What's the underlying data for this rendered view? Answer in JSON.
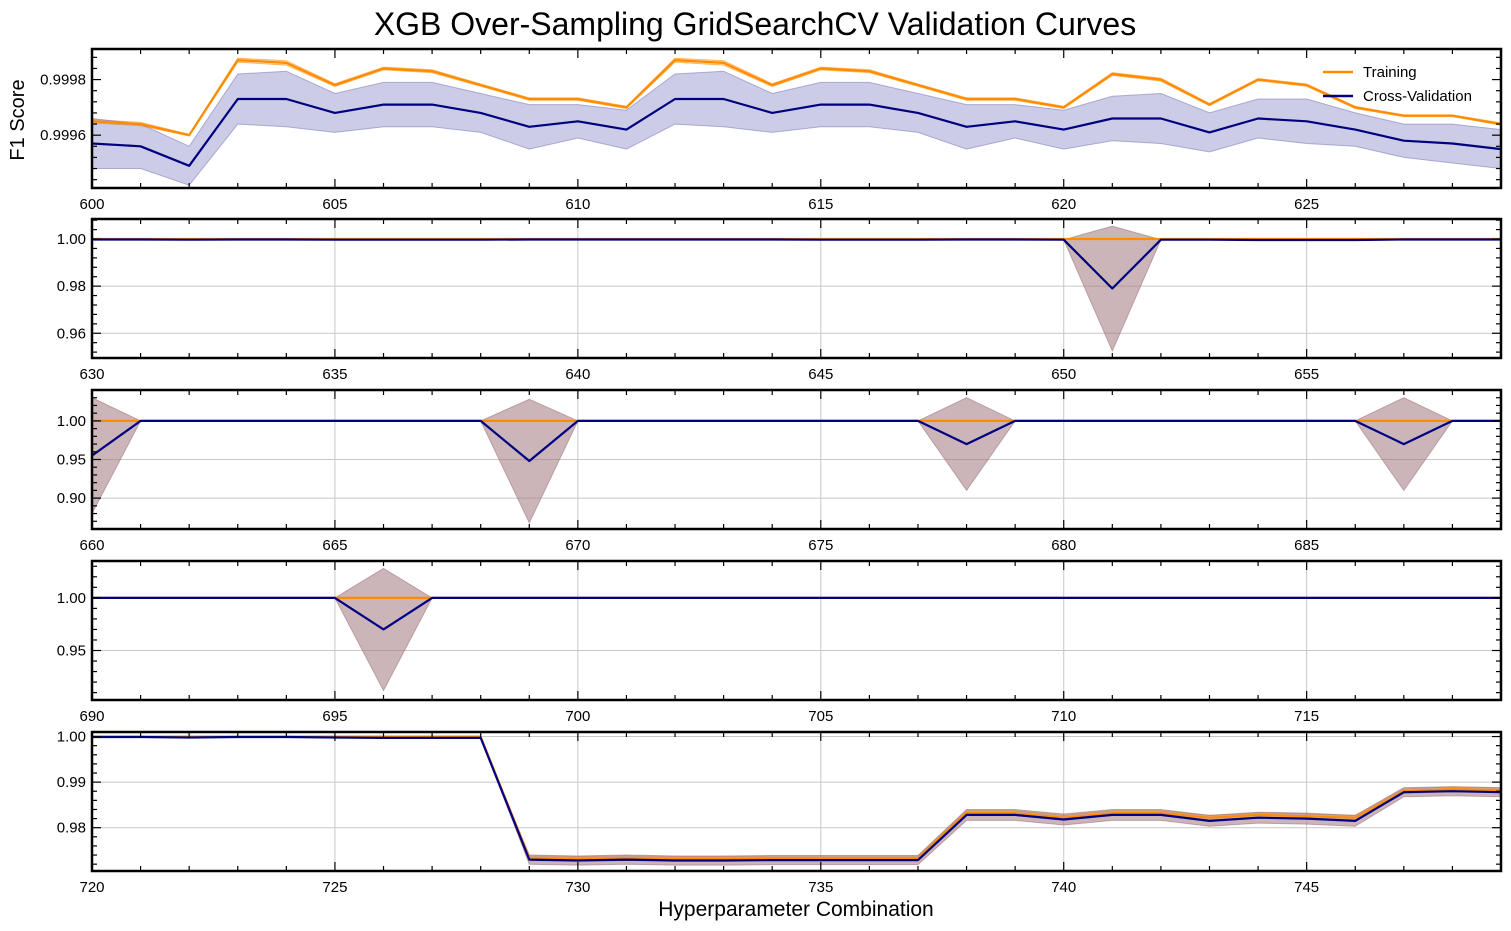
{
  "figure": {
    "title": "XGB Over-Sampling GridSearchCV Validation Curves",
    "ylabel": "F1 Score",
    "xlabel": "Hyperparameter Combination"
  },
  "legend": {
    "placement": "top-right of first panel",
    "entries": [
      "Training",
      "Cross-Validation"
    ]
  },
  "colors": {
    "training": "#ff8c00",
    "training_band": "#ffcc99",
    "cv": "#000080",
    "cv_band": "#8080c0",
    "cv_band_overlap": "#a07880"
  },
  "chart_data": [
    {
      "type": "line",
      "x": [
        600,
        601,
        602,
        603,
        604,
        605,
        606,
        607,
        608,
        609,
        610,
        611,
        612,
        613,
        614,
        615,
        616,
        617,
        618,
        619,
        620,
        621,
        622,
        623,
        624,
        625,
        626,
        627,
        628,
        629
      ],
      "xlim": [
        600,
        629
      ],
      "ylim": [
        0.99941,
        0.99991
      ],
      "xticks": [
        600,
        605,
        610,
        615,
        620,
        625
      ],
      "yticks": [
        0.9996,
        0.9998
      ],
      "ytick_labels": [
        "0.9996",
        "0.9998"
      ],
      "grid": false,
      "series": [
        {
          "name": "Training",
          "values": [
            0.99965,
            0.99964,
            0.9996,
            0.99987,
            0.99986,
            0.99978,
            0.99984,
            0.99983,
            0.99978,
            0.99973,
            0.99973,
            0.9997,
            0.99987,
            0.99986,
            0.99978,
            0.99984,
            0.99983,
            0.99978,
            0.99973,
            0.99973,
            0.9997,
            0.99982,
            0.9998,
            0.99971,
            0.9998,
            0.99978,
            0.9997,
            0.99967,
            0.99967,
            0.99964
          ],
          "std": [
            6e-06,
            6e-06,
            3e-06,
            7e-06,
            8e-06,
            5e-06,
            5e-06,
            5e-06,
            4e-06,
            4e-06,
            4e-06,
            4e-06,
            7e-06,
            8e-06,
            5e-06,
            5e-06,
            5e-06,
            4e-06,
            4e-06,
            4e-06,
            4e-06,
            5e-06,
            5e-06,
            4e-06,
            4e-06,
            4e-06,
            4e-06,
            3e-06,
            3e-06,
            4e-06
          ]
        },
        {
          "name": "Cross-Validation",
          "values": [
            0.99957,
            0.99956,
            0.99949,
            0.99973,
            0.99973,
            0.99968,
            0.99971,
            0.99971,
            0.99968,
            0.99963,
            0.99965,
            0.99962,
            0.99973,
            0.99973,
            0.99968,
            0.99971,
            0.99971,
            0.99968,
            0.99963,
            0.99965,
            0.99962,
            0.99966,
            0.99966,
            0.99961,
            0.99966,
            0.99965,
            0.99962,
            0.99958,
            0.99957,
            0.99955
          ],
          "std": [
            9e-05,
            8e-05,
            7e-05,
            9e-05,
            0.0001,
            7e-05,
            8e-05,
            8e-05,
            7e-05,
            8e-05,
            6e-05,
            7e-05,
            9e-05,
            0.0001,
            7e-05,
            8e-05,
            8e-05,
            7e-05,
            8e-05,
            6e-05,
            7e-05,
            8e-05,
            9e-05,
            7e-05,
            7e-05,
            8e-05,
            6e-05,
            6e-05,
            7e-05,
            7e-05
          ]
        }
      ]
    },
    {
      "type": "line",
      "x": [
        630,
        631,
        632,
        633,
        634,
        635,
        636,
        637,
        638,
        639,
        640,
        641,
        642,
        643,
        644,
        645,
        646,
        647,
        648,
        649,
        650,
        651,
        652,
        653,
        654,
        655,
        656,
        657,
        658,
        659
      ],
      "xlim": [
        630,
        659
      ],
      "ylim": [
        0.9495,
        1.0085
      ],
      "xticks": [
        630,
        635,
        640,
        645,
        650,
        655
      ],
      "yticks": [
        0.96,
        0.98,
        1.0
      ],
      "ytick_labels": [
        "0.96",
        "0.98",
        "1.00"
      ],
      "grid": true,
      "series": [
        {
          "name": "Training",
          "values": [
            1,
            1,
            1,
            1,
            1,
            1,
            1,
            1,
            1,
            1,
            1,
            1,
            1,
            1,
            1,
            1,
            1,
            1,
            1,
            1,
            1,
            1,
            1,
            1,
            1,
            1,
            1,
            1,
            1,
            1
          ],
          "std": [
            0,
            0,
            0,
            0,
            0,
            0,
            0,
            0,
            0,
            0,
            0,
            0,
            0,
            0,
            0,
            0,
            0,
            0,
            0,
            0,
            0,
            0,
            0,
            0,
            0,
            0,
            0,
            0,
            0,
            0
          ]
        },
        {
          "name": "Cross-Validation",
          "values": [
            0.9998,
            0.9998,
            0.9997,
            0.9998,
            0.9998,
            0.9997,
            0.9997,
            0.9997,
            0.9997,
            0.9998,
            0.9998,
            0.9998,
            0.9998,
            0.9998,
            0.9998,
            0.9997,
            0.9997,
            0.9997,
            0.9998,
            0.9998,
            0.9997,
            0.979,
            0.9997,
            0.9997,
            0.9996,
            0.9996,
            0.9996,
            0.9998,
            0.9998,
            0.9998
          ],
          "std": [
            0,
            0,
            0,
            0,
            0,
            0,
            0,
            0,
            0,
            0,
            0,
            0,
            0,
            0,
            0,
            0,
            0,
            0,
            0,
            0,
            0,
            0.0265,
            0,
            0,
            0,
            0,
            0,
            0,
            0,
            0
          ]
        }
      ]
    },
    {
      "type": "line",
      "x": [
        660,
        661,
        662,
        663,
        664,
        665,
        666,
        667,
        668,
        669,
        670,
        671,
        672,
        673,
        674,
        675,
        676,
        677,
        678,
        679,
        680,
        681,
        682,
        683,
        684,
        685,
        686,
        687,
        688,
        689
      ],
      "xlim": [
        660,
        689
      ],
      "ylim": [
        0.86,
        1.04
      ],
      "xticks": [
        660,
        665,
        670,
        675,
        680,
        685
      ],
      "yticks": [
        0.9,
        0.95,
        1.0
      ],
      "ytick_labels": [
        "0.90",
        "0.95",
        "1.00"
      ],
      "grid": true,
      "series": [
        {
          "name": "Training",
          "values": [
            1,
            1,
            1,
            1,
            1,
            1,
            1,
            1,
            1,
            1,
            1,
            1,
            1,
            1,
            1,
            1,
            1,
            1,
            1,
            1,
            1,
            1,
            1,
            1,
            1,
            1,
            1,
            1,
            1,
            1
          ],
          "std": [
            0,
            0,
            0,
            0,
            0,
            0,
            0,
            0,
            0,
            0,
            0,
            0,
            0,
            0,
            0,
            0,
            0,
            0,
            0,
            0,
            0,
            0,
            0,
            0,
            0,
            0,
            0,
            0,
            0,
            0
          ]
        },
        {
          "name": "Cross-Validation",
          "values": [
            0.955,
            1.0,
            1.0,
            1.0,
            1.0,
            1.0,
            1.0,
            1.0,
            1.0,
            0.948,
            1.0,
            1.0,
            1.0,
            1.0,
            1.0,
            1.0,
            1.0,
            1.0,
            0.97,
            1.0,
            1.0,
            1.0,
            1.0,
            1.0,
            1.0,
            1.0,
            1.0,
            0.97,
            1.0,
            1.0
          ],
          "std": [
            0.075,
            0,
            0,
            0,
            0,
            0,
            0,
            0,
            0,
            0.08,
            0,
            0,
            0,
            0,
            0,
            0,
            0,
            0,
            0.06,
            0,
            0,
            0,
            0,
            0,
            0,
            0,
            0,
            0.06,
            0,
            0
          ]
        }
      ]
    },
    {
      "type": "line",
      "x": [
        690,
        691,
        692,
        693,
        694,
        695,
        696,
        697,
        698,
        699,
        700,
        701,
        702,
        703,
        704,
        705,
        706,
        707,
        708,
        709,
        710,
        711,
        712,
        713,
        714,
        715,
        716,
        717,
        718,
        719
      ],
      "xlim": [
        690,
        719
      ],
      "ylim": [
        0.903,
        1.035
      ],
      "xticks": [
        690,
        695,
        700,
        705,
        710,
        715
      ],
      "yticks": [
        0.95,
        1.0
      ],
      "ytick_labels": [
        "0.95",
        "1.00"
      ],
      "grid": true,
      "series": [
        {
          "name": "Training",
          "values": [
            1,
            1,
            1,
            1,
            1,
            1,
            1,
            1,
            1,
            1,
            1,
            1,
            1,
            1,
            1,
            1,
            1,
            1,
            1,
            1,
            1,
            1,
            1,
            1,
            1,
            1,
            1,
            1,
            1,
            1
          ],
          "std": [
            0,
            0,
            0,
            0,
            0,
            0,
            0,
            0,
            0,
            0,
            0,
            0,
            0,
            0,
            0,
            0,
            0,
            0,
            0,
            0,
            0,
            0,
            0,
            0,
            0,
            0,
            0,
            0,
            0,
            0
          ]
        },
        {
          "name": "Cross-Validation",
          "values": [
            1.0,
            1.0,
            1.0,
            1.0,
            1.0,
            1.0,
            0.97,
            1.0,
            1.0,
            1.0,
            1.0,
            1.0,
            1.0,
            1.0,
            1.0,
            1.0,
            1.0,
            1.0,
            1.0,
            1.0,
            1.0,
            1.0,
            1.0,
            1.0,
            1.0,
            1.0,
            1.0,
            1.0,
            1.0,
            1.0
          ],
          "std": [
            0,
            0,
            0,
            0,
            0,
            0,
            0.058,
            0,
            0,
            0,
            0,
            0,
            0,
            0,
            0,
            0,
            0,
            0,
            0,
            0,
            0,
            0,
            0,
            0,
            0,
            0,
            0,
            0,
            0,
            0
          ]
        }
      ]
    },
    {
      "type": "line",
      "x": [
        720,
        721,
        722,
        723,
        724,
        725,
        726,
        727,
        728,
        729,
        730,
        731,
        732,
        733,
        734,
        735,
        736,
        737,
        738,
        739,
        740,
        741,
        742,
        743,
        744,
        745,
        746,
        747,
        748,
        749
      ],
      "xlim": [
        720,
        749
      ],
      "ylim": [
        0.9705,
        1.001
      ],
      "xticks": [
        720,
        725,
        730,
        735,
        740,
        745
      ],
      "yticks": [
        0.98,
        0.99,
        1.0
      ],
      "ytick_labels": [
        "0.98",
        "0.99",
        "1.00"
      ],
      "grid": true,
      "series": [
        {
          "name": "Training",
          "values": [
            1.0,
            1.0,
            1.0,
            1.0,
            1.0,
            1.0,
            1.0,
            1.0,
            1.0,
            0.9733,
            0.9732,
            0.9733,
            0.9732,
            0.9732,
            0.9733,
            0.9733,
            0.9733,
            0.9733,
            0.9832,
            0.9832,
            0.9822,
            0.9832,
            0.9832,
            0.9822,
            0.9828,
            0.9825,
            0.9822,
            0.988,
            0.9885,
            0.9882
          ],
          "std": [
            0,
            0,
            0,
            0,
            0,
            0,
            0,
            0,
            0,
            0.0005,
            0.0005,
            0.0005,
            0.0005,
            0.0005,
            0.0005,
            0.0005,
            0.0005,
            0.0005,
            0.0005,
            0.0005,
            0.0005,
            0.0005,
            0.0005,
            0.0005,
            0.0005,
            0.0005,
            0.0005,
            0.0005,
            0.0005,
            0.0005
          ]
        },
        {
          "name": "Cross-Validation",
          "values": [
            0.9999,
            0.9999,
            0.9998,
            0.9999,
            0.9999,
            0.9998,
            0.9997,
            0.9997,
            0.9997,
            0.973,
            0.9728,
            0.973,
            0.9728,
            0.9728,
            0.9729,
            0.9729,
            0.9729,
            0.9729,
            0.9828,
            0.9828,
            0.9818,
            0.9828,
            0.9828,
            0.9815,
            0.9822,
            0.982,
            0.9815,
            0.9878,
            0.988,
            0.9878
          ],
          "std": [
            0,
            0,
            0,
            0,
            0,
            0,
            0,
            0,
            0,
            0.001,
            0.001,
            0.001,
            0.001,
            0.001,
            0.001,
            0.001,
            0.001,
            0.001,
            0.0012,
            0.0012,
            0.0012,
            0.0012,
            0.0012,
            0.0012,
            0.0012,
            0.0012,
            0.0012,
            0.001,
            0.001,
            0.001
          ]
        }
      ]
    }
  ]
}
